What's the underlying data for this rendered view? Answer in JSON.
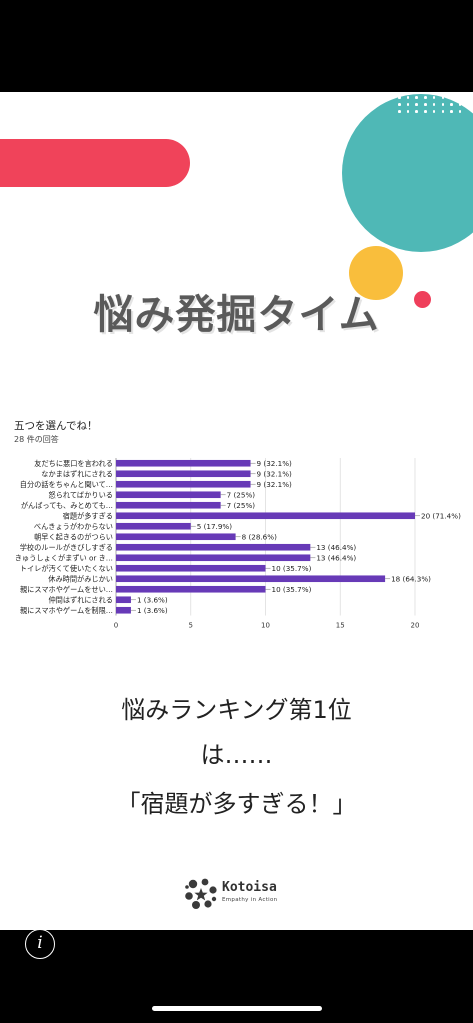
{
  "slide": {
    "title": "悩み発掘タイム",
    "form_title": "五つを選んでね！",
    "response_count": "28 件の回答",
    "ranking_line1": "悩みランキング第1位",
    "ranking_line2": "は……",
    "ranking_line3": "「宿題が多すぎる！」",
    "logo_name": "Kotoisa",
    "logo_tagline": "Empathy in Action"
  },
  "colors": {
    "red_bar": "#f0435a",
    "teal": "#4fb8b6",
    "yellow": "#f9be3c",
    "pink": "#ef3f5b",
    "bar": "#673ab7"
  },
  "chart_data": {
    "type": "bar",
    "orientation": "horizontal",
    "categories": [
      "友だちに悪口を言われる",
      "なかまはずれにされる",
      "自分の話をちゃんと聞いて…",
      "怒られてばかりいる",
      "がんばっても、みとめても…",
      "宿題が多すぎる",
      "べんきょうがわからない",
      "朝早く起きるのがつらい",
      "学校のルールがきびしすぎる",
      "きゅうしょくがまずい or き…",
      "トイレが汚くて使いたくない",
      "休み時間がみじかい",
      "親にスマホやゲームをせい…",
      "仲間はずれにされる",
      "親にスマホやゲームを制限…"
    ],
    "values": [
      9,
      9,
      9,
      7,
      7,
      20,
      5,
      8,
      13,
      13,
      10,
      18,
      10,
      1,
      1
    ],
    "value_labels": [
      "9 (32.1%)",
      "9 (32.1%)",
      "9 (32.1%)",
      "7 (25%)",
      "7 (25%)",
      "20 (71.4%)",
      "5 (17.9%)",
      "8 (28.6%)",
      "13 (46.4%)",
      "13 (46.4%)",
      "10 (35.7%)",
      "18 (64.3%)",
      "10 (35.7%)",
      "1 (3.6%)",
      "1 (3.6%)"
    ],
    "x_ticks": [
      "0",
      "5",
      "10",
      "15",
      "20"
    ],
    "xlim": [
      0,
      20
    ],
    "grid": true
  },
  "ui": {
    "info_icon": "info-icon",
    "info_glyph": "i"
  }
}
